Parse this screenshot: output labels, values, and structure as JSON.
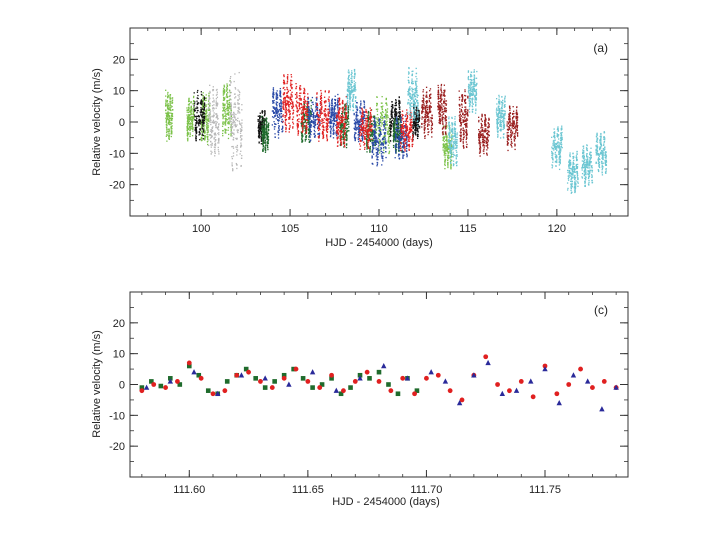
{
  "chart_data": [
    {
      "type": "scatter",
      "panel_label": "(a)",
      "xlabel": "HJD - 2454000 (days)",
      "ylabel": "Relative velocity (m/s)",
      "xlim": [
        96.0,
        124.0
      ],
      "ylim": [
        -30,
        30
      ],
      "xticks": [
        100,
        105,
        110,
        115,
        120
      ],
      "xtick_labels": [
        "100",
        "105",
        "110",
        "115",
        "120"
      ],
      "xminor_step": 1,
      "yticks": [
        -20,
        -10,
        0,
        10,
        20
      ],
      "ytick_labels": [
        "-20",
        "-10",
        "0",
        "10",
        "20"
      ],
      "yminor_step": 5,
      "series": [
        {
          "name": "light-green",
          "color": "#7cc24a",
          "nights": [
            [
              98.0,
              98.4,
              2,
              7
            ],
            [
              99.2,
              99.6,
              1,
              6
            ],
            [
              100.0,
              100.5,
              1,
              7
            ],
            [
              101.2,
              101.7,
              4,
              8
            ],
            [
              109.8,
              110.6,
              -1,
              8
            ],
            [
              113.6,
              114.1,
              -8,
              6
            ]
          ]
        },
        {
          "name": "black",
          "color": "#111111",
          "nights": [
            [
              99.6,
              100.2,
              2,
              7
            ],
            [
              103.2,
              103.6,
              -1,
              5
            ],
            [
              110.6,
              111.2,
              1,
              6
            ],
            [
              111.9,
              112.3,
              0,
              5
            ]
          ]
        },
        {
          "name": "gray",
          "color": "#b8b8b8",
          "nights": [
            [
              100.4,
              101.0,
              0,
              10
            ],
            [
              101.6,
              102.3,
              0,
              14
            ]
          ]
        },
        {
          "name": "dark-green",
          "color": "#1f6b2c",
          "nights": [
            [
              103.4,
              103.8,
              -4,
              5
            ],
            [
              105.6,
              106.2,
              0,
              6
            ],
            [
              107.8,
              108.3,
              -1,
              6
            ],
            [
              109.3,
              109.8,
              -3,
              6
            ],
            [
              110.8,
              111.3,
              -4,
              5
            ]
          ]
        },
        {
          "name": "blue",
          "color": "#2a4aa8",
          "nights": [
            [
              104.0,
              104.6,
              3,
              7
            ],
            [
              106.0,
              106.7,
              1,
              6
            ],
            [
              107.2,
              107.7,
              2,
              6
            ],
            [
              108.6,
              109.2,
              0,
              6
            ],
            [
              109.6,
              110.4,
              -6,
              7
            ],
            [
              110.9,
              111.6,
              -5,
              6
            ]
          ]
        },
        {
          "name": "red",
          "color": "#e02020",
          "nights": [
            [
              104.6,
              105.2,
              6,
              8
            ],
            [
              105.3,
              106.0,
              4,
              7
            ],
            [
              106.5,
              107.2,
              2,
              7
            ],
            [
              107.6,
              108.2,
              0,
              7
            ],
            [
              108.9,
              109.6,
              -2,
              6
            ],
            [
              111.2,
              111.9,
              -3,
              6
            ]
          ]
        },
        {
          "name": "dark-red",
          "color": "#9a2020",
          "nights": [
            [
              112.4,
              113.0,
              3,
              7
            ],
            [
              113.3,
              113.8,
              4,
              7
            ],
            [
              114.5,
              115.0,
              1,
              8
            ],
            [
              115.6,
              116.2,
              -4,
              6
            ],
            [
              117.2,
              117.8,
              -2,
              6
            ]
          ]
        },
        {
          "name": "cyan",
          "color": "#6cc6d2",
          "nights": [
            [
              108.2,
              108.7,
              10,
              6
            ],
            [
              111.6,
              112.2,
              8,
              8
            ],
            [
              113.9,
              114.4,
              -6,
              7
            ],
            [
              115.0,
              115.5,
              10,
              6
            ],
            [
              116.6,
              117.1,
              2,
              6
            ],
            [
              119.7,
              120.3,
              -8,
              6
            ],
            [
              120.6,
              121.2,
              -16,
              6
            ],
            [
              121.4,
              122.0,
              -14,
              6
            ],
            [
              122.2,
              122.8,
              -10,
              6
            ]
          ]
        }
      ]
    },
    {
      "type": "scatter",
      "panel_label": "(c)",
      "xlabel": "HJD - 2454000 (days)",
      "ylabel": "Relative velocity (m/s)",
      "xlim": [
        111.575,
        111.785
      ],
      "ylim": [
        -30,
        30
      ],
      "xticks": [
        111.6,
        111.65,
        111.7,
        111.75
      ],
      "xtick_labels": [
        "111.60",
        "111.65",
        "111.70",
        "111.75"
      ],
      "xminor_step": 0.01,
      "yticks": [
        -20,
        -10,
        0,
        10,
        20
      ],
      "ytick_labels": [
        "-20",
        "-10",
        "0",
        "10",
        "20"
      ],
      "yminor_step": 5,
      "series": [
        {
          "name": "dark-green squares",
          "color": "#1f6b2c",
          "marker": "square",
          "x": [
            111.58,
            111.584,
            111.588,
            111.592,
            111.596,
            111.6,
            111.604,
            111.608,
            111.612,
            111.616,
            111.62,
            111.624,
            111.628,
            111.632,
            111.636,
            111.64,
            111.644,
            111.648,
            111.652,
            111.656,
            111.66,
            111.664,
            111.668,
            111.672,
            111.676,
            111.68,
            111.684,
            111.688,
            111.692,
            111.696
          ],
          "y": [
            -1,
            1,
            -0.5,
            2,
            0,
            6,
            3,
            -2,
            -3,
            1,
            3,
            5,
            2,
            -1,
            1,
            3,
            5,
            2,
            -1,
            0,
            2,
            -3,
            -1,
            3,
            2,
            4,
            0,
            -3,
            2,
            -2
          ]
        },
        {
          "name": "red circles",
          "color": "#e02020",
          "marker": "circle",
          "x": [
            111.58,
            111.585,
            111.59,
            111.595,
            111.6,
            111.605,
            111.61,
            111.615,
            111.62,
            111.625,
            111.63,
            111.635,
            111.64,
            111.645,
            111.65,
            111.655,
            111.66,
            111.665,
            111.67,
            111.675,
            111.68,
            111.685,
            111.69,
            111.695,
            111.7,
            111.705,
            111.71,
            111.715,
            111.72,
            111.725,
            111.73,
            111.735,
            111.74,
            111.745,
            111.75,
            111.755,
            111.76,
            111.765,
            111.77,
            111.775,
            111.78
          ],
          "y": [
            -2,
            0,
            -1,
            1,
            7,
            2,
            -3,
            -2,
            3,
            4,
            1,
            -1,
            2,
            5,
            1,
            -1,
            3,
            -2,
            1,
            4,
            1,
            -2,
            2,
            -3,
            2,
            3,
            -2,
            -5,
            3,
            9,
            0,
            -2,
            1,
            -4,
            6,
            -3,
            0,
            5,
            -1,
            1,
            -1
          ]
        },
        {
          "name": "blue triangles",
          "color": "#2a2a9a",
          "marker": "triangle",
          "x": [
            111.582,
            111.592,
            111.602,
            111.612,
            111.622,
            111.632,
            111.642,
            111.652,
            111.662,
            111.672,
            111.682,
            111.692,
            111.702,
            111.708,
            111.714,
            111.72,
            111.726,
            111.732,
            111.738,
            111.744,
            111.75,
            111.756,
            111.762,
            111.768,
            111.774,
            111.78
          ],
          "y": [
            -1,
            1,
            4,
            -3,
            3,
            2,
            0,
            4,
            -2,
            2,
            6,
            2,
            4,
            1,
            -6,
            3,
            7,
            -3,
            -2,
            1,
            5,
            -6,
            3,
            1,
            -8,
            -1
          ]
        }
      ]
    }
  ]
}
